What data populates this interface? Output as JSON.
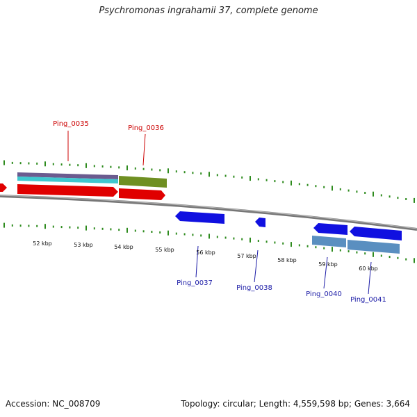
{
  "header": {
    "title": "Psychromonas ingrahamii 37, complete genome"
  },
  "footer": {
    "accession": "Accession: NC_008709",
    "summary": "Topology: circular; Length: 4,559,598 bp; Genes: 3,664"
  },
  "colors": {
    "backbone": "#8a8a8a",
    "tick": "#2e8b1e",
    "forward_cds": "#e00000",
    "reverse_cds": "#1010e0",
    "olive_feature": "#6f8f22",
    "steel_feature": "#5a8fc0",
    "purple_feature": "#6b5b8f",
    "cyan_feature": "#3fc8d0",
    "label_red": "#cc0000",
    "label_blue": "#1a1aa6"
  },
  "ticks": [
    "52 kbp",
    "53 kbp",
    "54 kbp",
    "55 kbp",
    "56 kbp",
    "57 kbp",
    "58 kbp",
    "59 kbp",
    "60 kbp"
  ],
  "genes": [
    {
      "id": "Ping_0035",
      "strand": "forward"
    },
    {
      "id": "Ping_0036",
      "strand": "forward"
    },
    {
      "id": "Ping_0037",
      "strand": "reverse"
    },
    {
      "id": "Ping_0038",
      "strand": "reverse"
    },
    {
      "id": "Ping_0040",
      "strand": "reverse"
    },
    {
      "id": "Ping_0041",
      "strand": "reverse"
    }
  ]
}
